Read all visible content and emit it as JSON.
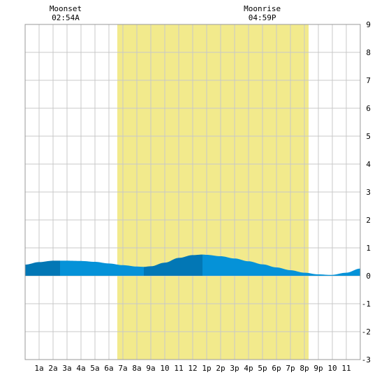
{
  "chart_data": {
    "type": "area",
    "title": "",
    "xlabel": "",
    "ylabel": "",
    "xlim": [
      0,
      24
    ],
    "ylim": [
      -3,
      9
    ],
    "grid": true,
    "y_ticks": [
      "-3",
      "-2",
      "-1",
      "0",
      "1",
      "2",
      "3",
      "4",
      "5",
      "6",
      "7",
      "8",
      "9"
    ],
    "x_ticks": [
      {
        "hour": 1,
        "label": "1a"
      },
      {
        "hour": 2,
        "label": "2a"
      },
      {
        "hour": 3,
        "label": "3a"
      },
      {
        "hour": 4,
        "label": "4a"
      },
      {
        "hour": 5,
        "label": "5a"
      },
      {
        "hour": 6,
        "label": "6a"
      },
      {
        "hour": 7,
        "label": "7a"
      },
      {
        "hour": 8,
        "label": "8a"
      },
      {
        "hour": 9,
        "label": "9a"
      },
      {
        "hour": 10,
        "label": "10"
      },
      {
        "hour": 11,
        "label": "11"
      },
      {
        "hour": 12,
        "label": "12"
      },
      {
        "hour": 13,
        "label": "1p"
      },
      {
        "hour": 14,
        "label": "2p"
      },
      {
        "hour": 15,
        "label": "3p"
      },
      {
        "hour": 16,
        "label": "4p"
      },
      {
        "hour": 17,
        "label": "5p"
      },
      {
        "hour": 18,
        "label": "6p"
      },
      {
        "hour": 19,
        "label": "7p"
      },
      {
        "hour": 20,
        "label": "8p"
      },
      {
        "hour": 21,
        "label": "9p"
      },
      {
        "hour": 22,
        "label": "10"
      },
      {
        "hour": 23,
        "label": "11"
      }
    ],
    "daylight": {
      "start": 6.6,
      "end": 20.3,
      "color": "#f2ea8c"
    },
    "moon_events": [
      {
        "name": "Moonset",
        "time": "02:54A",
        "hour": 2.9
      },
      {
        "name": "Moonrise",
        "time": "04:59P",
        "hour": 16.98
      }
    ],
    "series": [
      {
        "x": [
          0,
          1,
          2,
          3,
          4,
          5,
          6,
          7,
          8,
          8.5,
          9,
          10,
          11,
          12,
          12.7,
          13,
          14,
          15,
          16,
          17,
          18,
          19,
          20,
          21,
          21.9,
          23,
          24
        ],
        "y": [
          0.4,
          0.49,
          0.54,
          0.54,
          0.53,
          0.5,
          0.44,
          0.38,
          0.33,
          0.32,
          0.34,
          0.47,
          0.64,
          0.74,
          0.76,
          0.75,
          0.7,
          0.62,
          0.52,
          0.41,
          0.3,
          0.2,
          0.11,
          0.05,
          0.03,
          0.11,
          0.26
        ]
      }
    ],
    "colors": {
      "tide_light": "#0592d8",
      "tide_dark": "#0277b5",
      "grid": "#c8c8c8",
      "border": "#999999",
      "background": "#ffffff"
    },
    "shading_bands": [
      {
        "from": 0,
        "to": 2.5,
        "shade": "dark"
      },
      {
        "from": 2.5,
        "to": 8.5,
        "shade": "light"
      },
      {
        "from": 8.5,
        "to": 12.7,
        "shade": "dark"
      },
      {
        "from": 12.7,
        "to": 24,
        "shade": "light"
      }
    ]
  }
}
